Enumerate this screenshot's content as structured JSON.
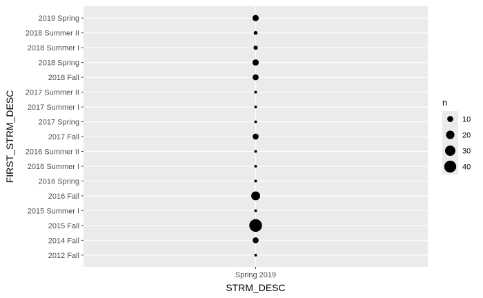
{
  "chart_data": {
    "type": "scatter",
    "xlabel": "STRM_DESC",
    "ylabel": "FIRST_STRM_DESC",
    "x_categories": [
      "Spring 2019"
    ],
    "y_categories": [
      "2012 Fall",
      "2014 Fall",
      "2015 Fall",
      "2015 Summer I",
      "2016 Fall",
      "2016 Spring",
      "2016 Summer I",
      "2016 Summer II",
      "2017 Fall",
      "2017 Spring",
      "2017 Summer I",
      "2017 Summer II",
      "2018 Fall",
      "2018 Spring",
      "2018 Summer I",
      "2018 Summer II",
      "2019 Spring"
    ],
    "size_variable": "n",
    "points": [
      {
        "x": "Spring 2019",
        "y": "2012 Fall",
        "n": 2
      },
      {
        "x": "Spring 2019",
        "y": "2014 Fall",
        "n": 10
      },
      {
        "x": "Spring 2019",
        "y": "2015 Fall",
        "n": 45
      },
      {
        "x": "Spring 2019",
        "y": "2015 Summer I",
        "n": 2
      },
      {
        "x": "Spring 2019",
        "y": "2016 Fall",
        "n": 22
      },
      {
        "x": "Spring 2019",
        "y": "2016 Spring",
        "n": 2
      },
      {
        "x": "Spring 2019",
        "y": "2016 Summer I",
        "n": 2
      },
      {
        "x": "Spring 2019",
        "y": "2016 Summer II",
        "n": 2
      },
      {
        "x": "Spring 2019",
        "y": "2017 Fall",
        "n": 10
      },
      {
        "x": "Spring 2019",
        "y": "2017 Spring",
        "n": 2
      },
      {
        "x": "Spring 2019",
        "y": "2017 Summer I",
        "n": 2
      },
      {
        "x": "Spring 2019",
        "y": "2017 Summer II",
        "n": 2
      },
      {
        "x": "Spring 2019",
        "y": "2018 Fall",
        "n": 10
      },
      {
        "x": "Spring 2019",
        "y": "2018 Spring",
        "n": 11
      },
      {
        "x": "Spring 2019",
        "y": "2018 Summer I",
        "n": 5
      },
      {
        "x": "Spring 2019",
        "y": "2018 Summer II",
        "n": 4
      },
      {
        "x": "Spring 2019",
        "y": "2019 Spring",
        "n": 11
      }
    ],
    "legend": {
      "title": "n",
      "position": "right",
      "breaks": [
        10,
        20,
        30,
        40
      ]
    },
    "grid": true,
    "colors": {
      "panel_background": "#ebebeb",
      "grid": "#ffffff",
      "point": "#000000",
      "tick_text": "#4d4d4d",
      "tick_mark": "#333333"
    }
  }
}
